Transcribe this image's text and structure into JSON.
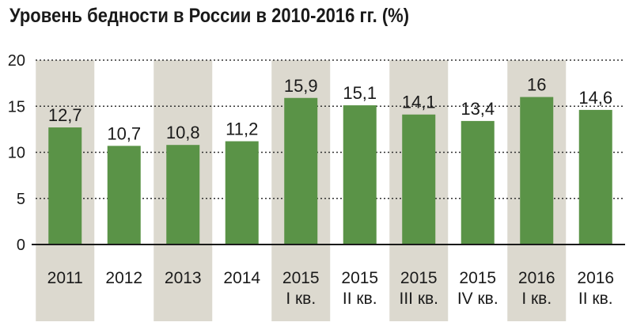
{
  "chart_data": {
    "type": "bar",
    "title": "Уровень бедности в России в 2010-2016 гг. (%)",
    "xlabel": "",
    "ylabel": "",
    "ylim": [
      0,
      20
    ],
    "yticks": [
      "0",
      "5",
      "10",
      "15",
      "20"
    ],
    "categories": [
      [
        "2011"
      ],
      [
        "2012"
      ],
      [
        "2013"
      ],
      [
        "2014"
      ],
      [
        "2015",
        "I кв."
      ],
      [
        "2015",
        "II кв."
      ],
      [
        "2015",
        "III кв."
      ],
      [
        "2015",
        "IV кв."
      ],
      [
        "2016",
        "I кв."
      ],
      [
        "2016",
        "II кв."
      ]
    ],
    "values": [
      12.7,
      10.7,
      10.8,
      11.2,
      15.9,
      15.1,
      14.1,
      13.4,
      16,
      14.6
    ],
    "value_labels": [
      "12,7",
      "10,7",
      "10,8",
      "11,2",
      "15,9",
      "15,1",
      "14,1",
      "13,4",
      "16",
      "14,6"
    ],
    "shaded_columns": [
      0,
      2,
      4,
      6,
      8
    ],
    "grid": true,
    "colors": {
      "bar": "#5a9347",
      "shade": "#dcd9cf",
      "grid": "#333333",
      "axis": "#1a1a1a"
    }
  }
}
